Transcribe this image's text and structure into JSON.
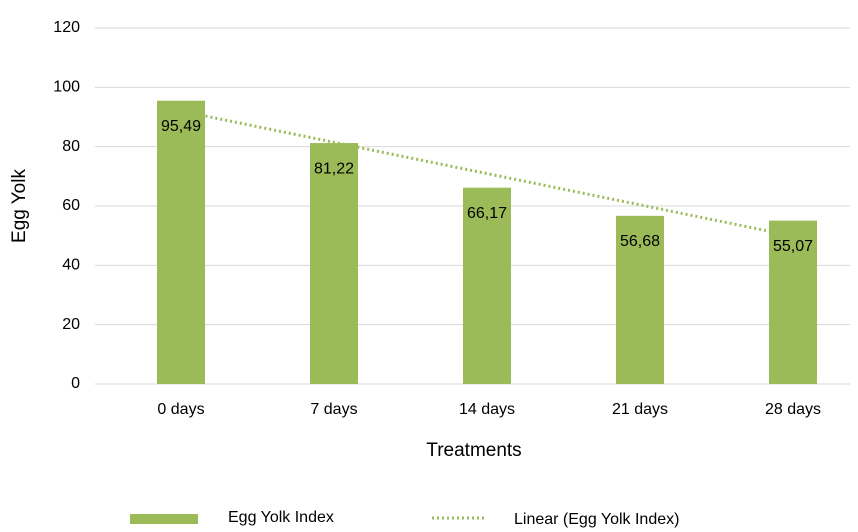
{
  "chart_data": {
    "type": "bar",
    "categories": [
      "0 days",
      "7 days",
      "14 days",
      "21 days",
      "28 days"
    ],
    "series": [
      {
        "name": "Egg Yolk Index",
        "color": "#9bbb59",
        "values": [
          95.49,
          81.22,
          66.17,
          56.68,
          55.07
        ],
        "value_labels": [
          "95,49",
          "81,22",
          "66,17",
          "56,68",
          "55,07"
        ]
      }
    ],
    "trendline": {
      "name": "Linear (Egg Yolk Index)",
      "color": "#9bbb59",
      "type": "linear"
    },
    "x_label": "Treatments",
    "y_label": "Egg Yolk",
    "ylim": [
      0,
      120
    ],
    "yticks": [
      0,
      20,
      40,
      60,
      80,
      100,
      120
    ],
    "grid": true,
    "legend": "bottom"
  }
}
